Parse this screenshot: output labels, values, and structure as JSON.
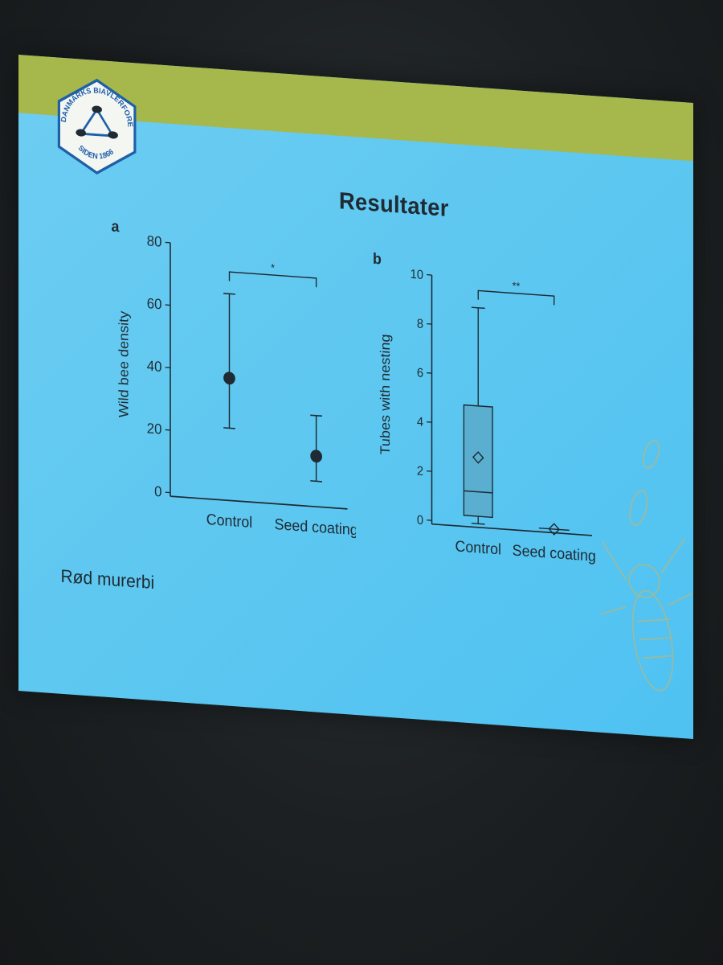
{
  "slide": {
    "title": "Resultater",
    "caption": "Rød murerbi",
    "logo": {
      "top_text": "DANMARKS BIAVLERFORENING",
      "bottom_text": "SIDEN 1866"
    },
    "colors": {
      "background": "#5fc8f0",
      "banner": "#a6b84b",
      "ink": "#1f2a33"
    }
  },
  "chart_data": [
    {
      "type": "scatter",
      "panel_label": "a",
      "categories": [
        "Control",
        "Seed coating"
      ],
      "ylabel": "Wild bee density",
      "ylim": [
        0,
        80
      ],
      "yticks": [
        0,
        20,
        40,
        60,
        80
      ],
      "points": [
        {
          "category": "Control",
          "mean": 38,
          "lower": 22,
          "upper": 65
        },
        {
          "category": "Seed coating",
          "mean": 15,
          "lower": 7,
          "upper": 28
        }
      ],
      "significance": "*"
    },
    {
      "type": "box",
      "panel_label": "b",
      "categories": [
        "Control",
        "Seed coating"
      ],
      "ylabel": "Tubes with nesting",
      "ylim": [
        0,
        10
      ],
      "yticks": [
        0,
        2,
        4,
        6,
        8,
        10
      ],
      "boxes": [
        {
          "category": "Control",
          "min": 0,
          "q1": 0.3,
          "median": 1.3,
          "q3": 4.8,
          "max": 8.8,
          "mean": 2.7
        },
        {
          "category": "Seed coating",
          "min": 0,
          "q1": 0,
          "median": 0,
          "q3": 0,
          "max": 0,
          "mean": 0
        }
      ],
      "significance": "**"
    }
  ]
}
